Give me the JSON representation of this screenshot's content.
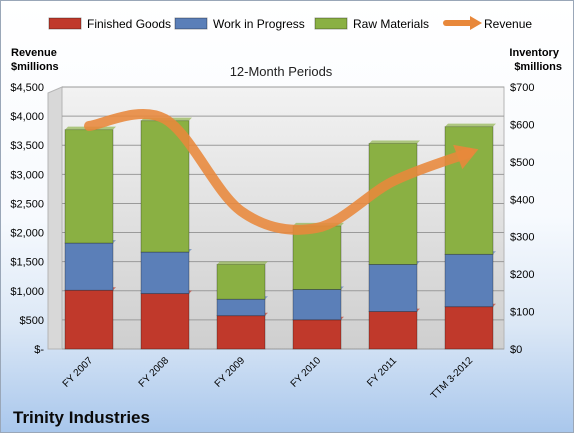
{
  "company": "Trinity Industries",
  "chart_data": {
    "type": "bar",
    "stacked": true,
    "title": "12-Month Periods",
    "ylabel_left": [
      "Revenue",
      "$millions"
    ],
    "ylabel_right": [
      "Inventory",
      "$millions"
    ],
    "categories": [
      "FY 2007",
      "FY 2008",
      "FY 2009",
      "FY 2010",
      "FY 2011",
      "TTM 3-2012"
    ],
    "left_axis": {
      "min": 0,
      "max": 4500,
      "step": 500,
      "tick_labels": [
        "$-",
        "$500",
        "$1,000",
        "$1,500",
        "$2,000",
        "$2,500",
        "$3,000",
        "$3,500",
        "$4,000",
        "$4,500"
      ]
    },
    "right_axis": {
      "min": 0,
      "max": 700,
      "step": 100,
      "tick_labels": [
        "$0",
        "$100",
        "$200",
        "$300",
        "$400",
        "$500",
        "$600",
        "$700"
      ]
    },
    "series": [
      {
        "name": "Finished Goods",
        "axis": "right",
        "color": "#c0392b",
        "values": [
          157,
          148,
          89,
          78,
          100,
          113
        ]
      },
      {
        "name": "Work in Progress",
        "axis": "right",
        "color": "#5b7fb8",
        "values": [
          126,
          111,
          44,
          81,
          126,
          140
        ]
      },
      {
        "name": "Raw Materials",
        "axis": "right",
        "color": "#8ab043",
        "values": [
          303,
          351,
          93,
          170,
          323,
          341
        ]
      },
      {
        "name": "Revenue",
        "axis": "left",
        "kind": "line",
        "color": "#e8883b",
        "values": [
          3830,
          3950,
          2370,
          2080,
          2880,
          3370
        ]
      }
    ],
    "legend_position": "top",
    "grid": true
  }
}
